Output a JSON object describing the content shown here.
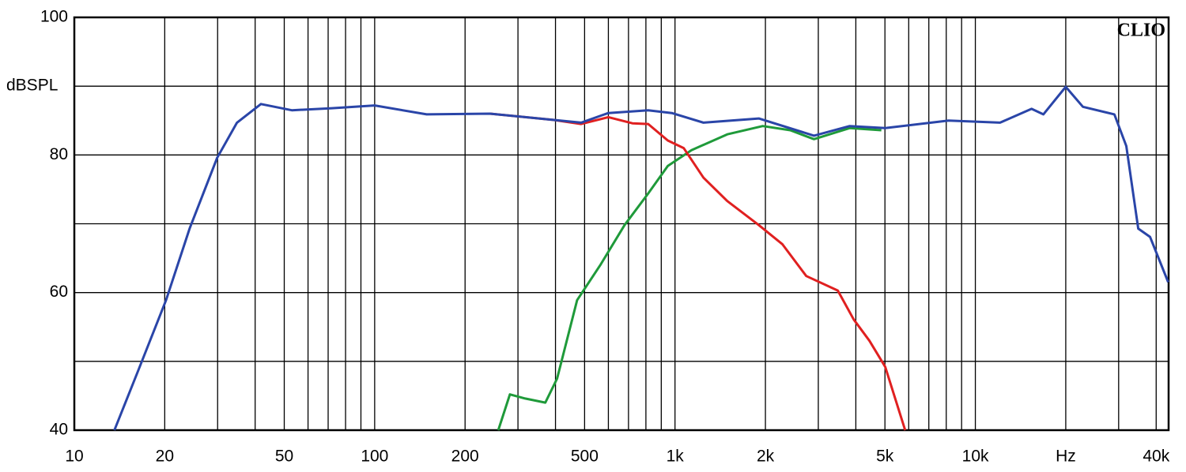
{
  "chart_data": {
    "type": "line",
    "brand": "CLIO",
    "ylabel": "dBSPL",
    "xscale": "log",
    "grid": true,
    "xlim": [
      10,
      44000
    ],
    "ylim": [
      40,
      100
    ],
    "xticks": [
      10,
      20,
      50,
      100,
      200,
      500,
      {
        "value": 1000,
        "label": "1k"
      },
      {
        "value": 2000,
        "label": "2k"
      },
      {
        "value": 5000,
        "label": "5k"
      },
      {
        "value": 10000,
        "label": "10k"
      },
      {
        "value": 20000,
        "label": "Hz"
      },
      {
        "value": 40000,
        "label": "40k"
      }
    ],
    "xminor": [
      30,
      40,
      60,
      70,
      80,
      90,
      300,
      400,
      600,
      700,
      800,
      900,
      3000,
      4000,
      6000,
      7000,
      8000,
      9000,
      30000
    ],
    "yticks": [
      40,
      60,
      80,
      100
    ],
    "yminor": [
      50,
      70,
      90
    ],
    "series": [
      {
        "color": "#2a45a8",
        "x": [
          13.6,
          16.3,
          20.2,
          24.2,
          29.9,
          34.8,
          41.8,
          53,
          72,
          100,
          149,
          242,
          393,
          487,
          600,
          814,
          976,
          1244,
          1901,
          2903,
          3816,
          5012,
          8144,
          12080,
          15390,
          16840,
          20000,
          22810,
          29030,
          31820,
          34860,
          38150,
          43860
        ],
        "values": [
          40,
          48.6,
          58.9,
          69.3,
          79.6,
          84.7,
          87.4,
          86.5,
          86.8,
          87.2,
          85.9,
          86.0,
          85.1,
          84.7,
          86.1,
          86.5,
          86.1,
          84.7,
          85.3,
          82.8,
          84.2,
          83.9,
          85.0,
          84.7,
          86.7,
          85.9,
          89.9,
          87.0,
          85.9,
          81.3,
          69.3,
          68.1,
          61.5
        ]
      },
      {
        "color": "#e02020",
        "x": [
          242,
          393,
          487,
          600,
          721,
          814,
          946,
          1069,
          1244,
          1493,
          1901,
          2280,
          2735,
          3483,
          3935,
          4439,
          5012,
          5837
        ],
        "values": [
          86.0,
          85.1,
          84.5,
          85.5,
          84.6,
          84.5,
          82.1,
          81.0,
          76.7,
          73.3,
          69.8,
          67.0,
          62.4,
          60.3,
          56.1,
          53.0,
          49.2,
          40
        ]
      },
      {
        "color": "#1f9a3a",
        "x": [
          258,
          282,
          317,
          370,
          405,
          472,
          566,
          679,
          814,
          946,
          1135,
          1493,
          1959,
          2420,
          2903,
          3816,
          4864
        ],
        "values": [
          40,
          45.2,
          44.6,
          44.0,
          47.5,
          58.9,
          64.1,
          69.8,
          74.4,
          78.4,
          80.7,
          83.0,
          84.2,
          83.6,
          82.3,
          83.9,
          83.6
        ]
      }
    ]
  }
}
